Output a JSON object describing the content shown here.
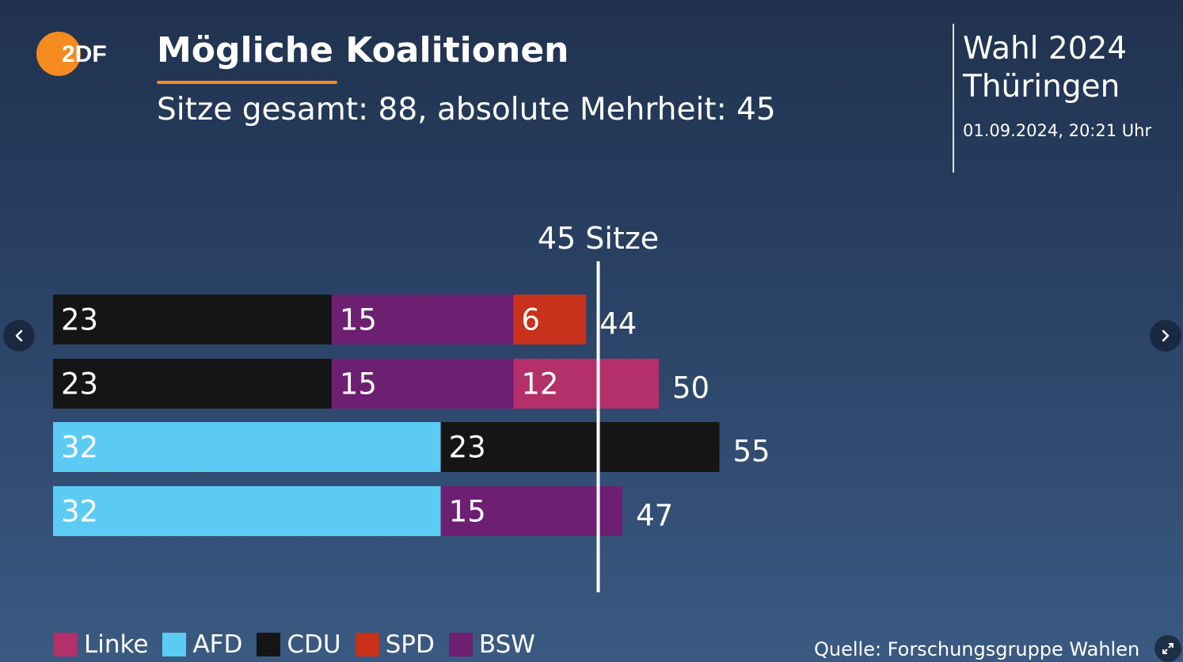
{
  "logo": {
    "text": "2DF",
    "icon": "zdf-logo-icon",
    "circle_color": "#f58a1f"
  },
  "header": {
    "title": "Mögliche Koalitionen",
    "subtitle": "Sitze gesamt: 88, absolute Mehrheit: 45",
    "underline_color": "#f58a1f"
  },
  "election": {
    "line1": "Wahl 2024",
    "line2": "Thüringen",
    "timestamp": "01.09.2024, 20:21 Uhr"
  },
  "chart_data": {
    "type": "bar",
    "orientation": "horizontal",
    "stacked": true,
    "majority_line": {
      "value": 45,
      "label": "45 Sitze"
    },
    "bars": [
      {
        "segments": [
          {
            "party": "CDU",
            "value": 23
          },
          {
            "party": "BSW",
            "value": 15
          },
          {
            "party": "SPD",
            "value": 6
          }
        ],
        "total": 44
      },
      {
        "segments": [
          {
            "party": "CDU",
            "value": 23
          },
          {
            "party": "BSW",
            "value": 15
          },
          {
            "party": "Linke",
            "value": 12
          }
        ],
        "total": 50
      },
      {
        "segments": [
          {
            "party": "AFD",
            "value": 32
          },
          {
            "party": "CDU",
            "value": 23
          }
        ],
        "total": 55
      },
      {
        "segments": [
          {
            "party": "AFD",
            "value": 32
          },
          {
            "party": "BSW",
            "value": 15
          }
        ],
        "total": 47
      }
    ],
    "party_colors": {
      "Linke": "#b3306a",
      "AFD": "#5ccbf4",
      "CDU": "#151515",
      "SPD": "#c8311a",
      "BSW": "#6d1f72"
    },
    "grid": false,
    "legend_position": "bottom-left",
    "legend": [
      "Linke",
      "AFD",
      "CDU",
      "SPD",
      "BSW"
    ]
  },
  "source": "Quelle: Forschungsgruppe Wahlen",
  "nav": {
    "prev_icon": "chevron-left-icon",
    "next_icon": "chevron-right-icon",
    "expand_icon": "expand-icon"
  }
}
